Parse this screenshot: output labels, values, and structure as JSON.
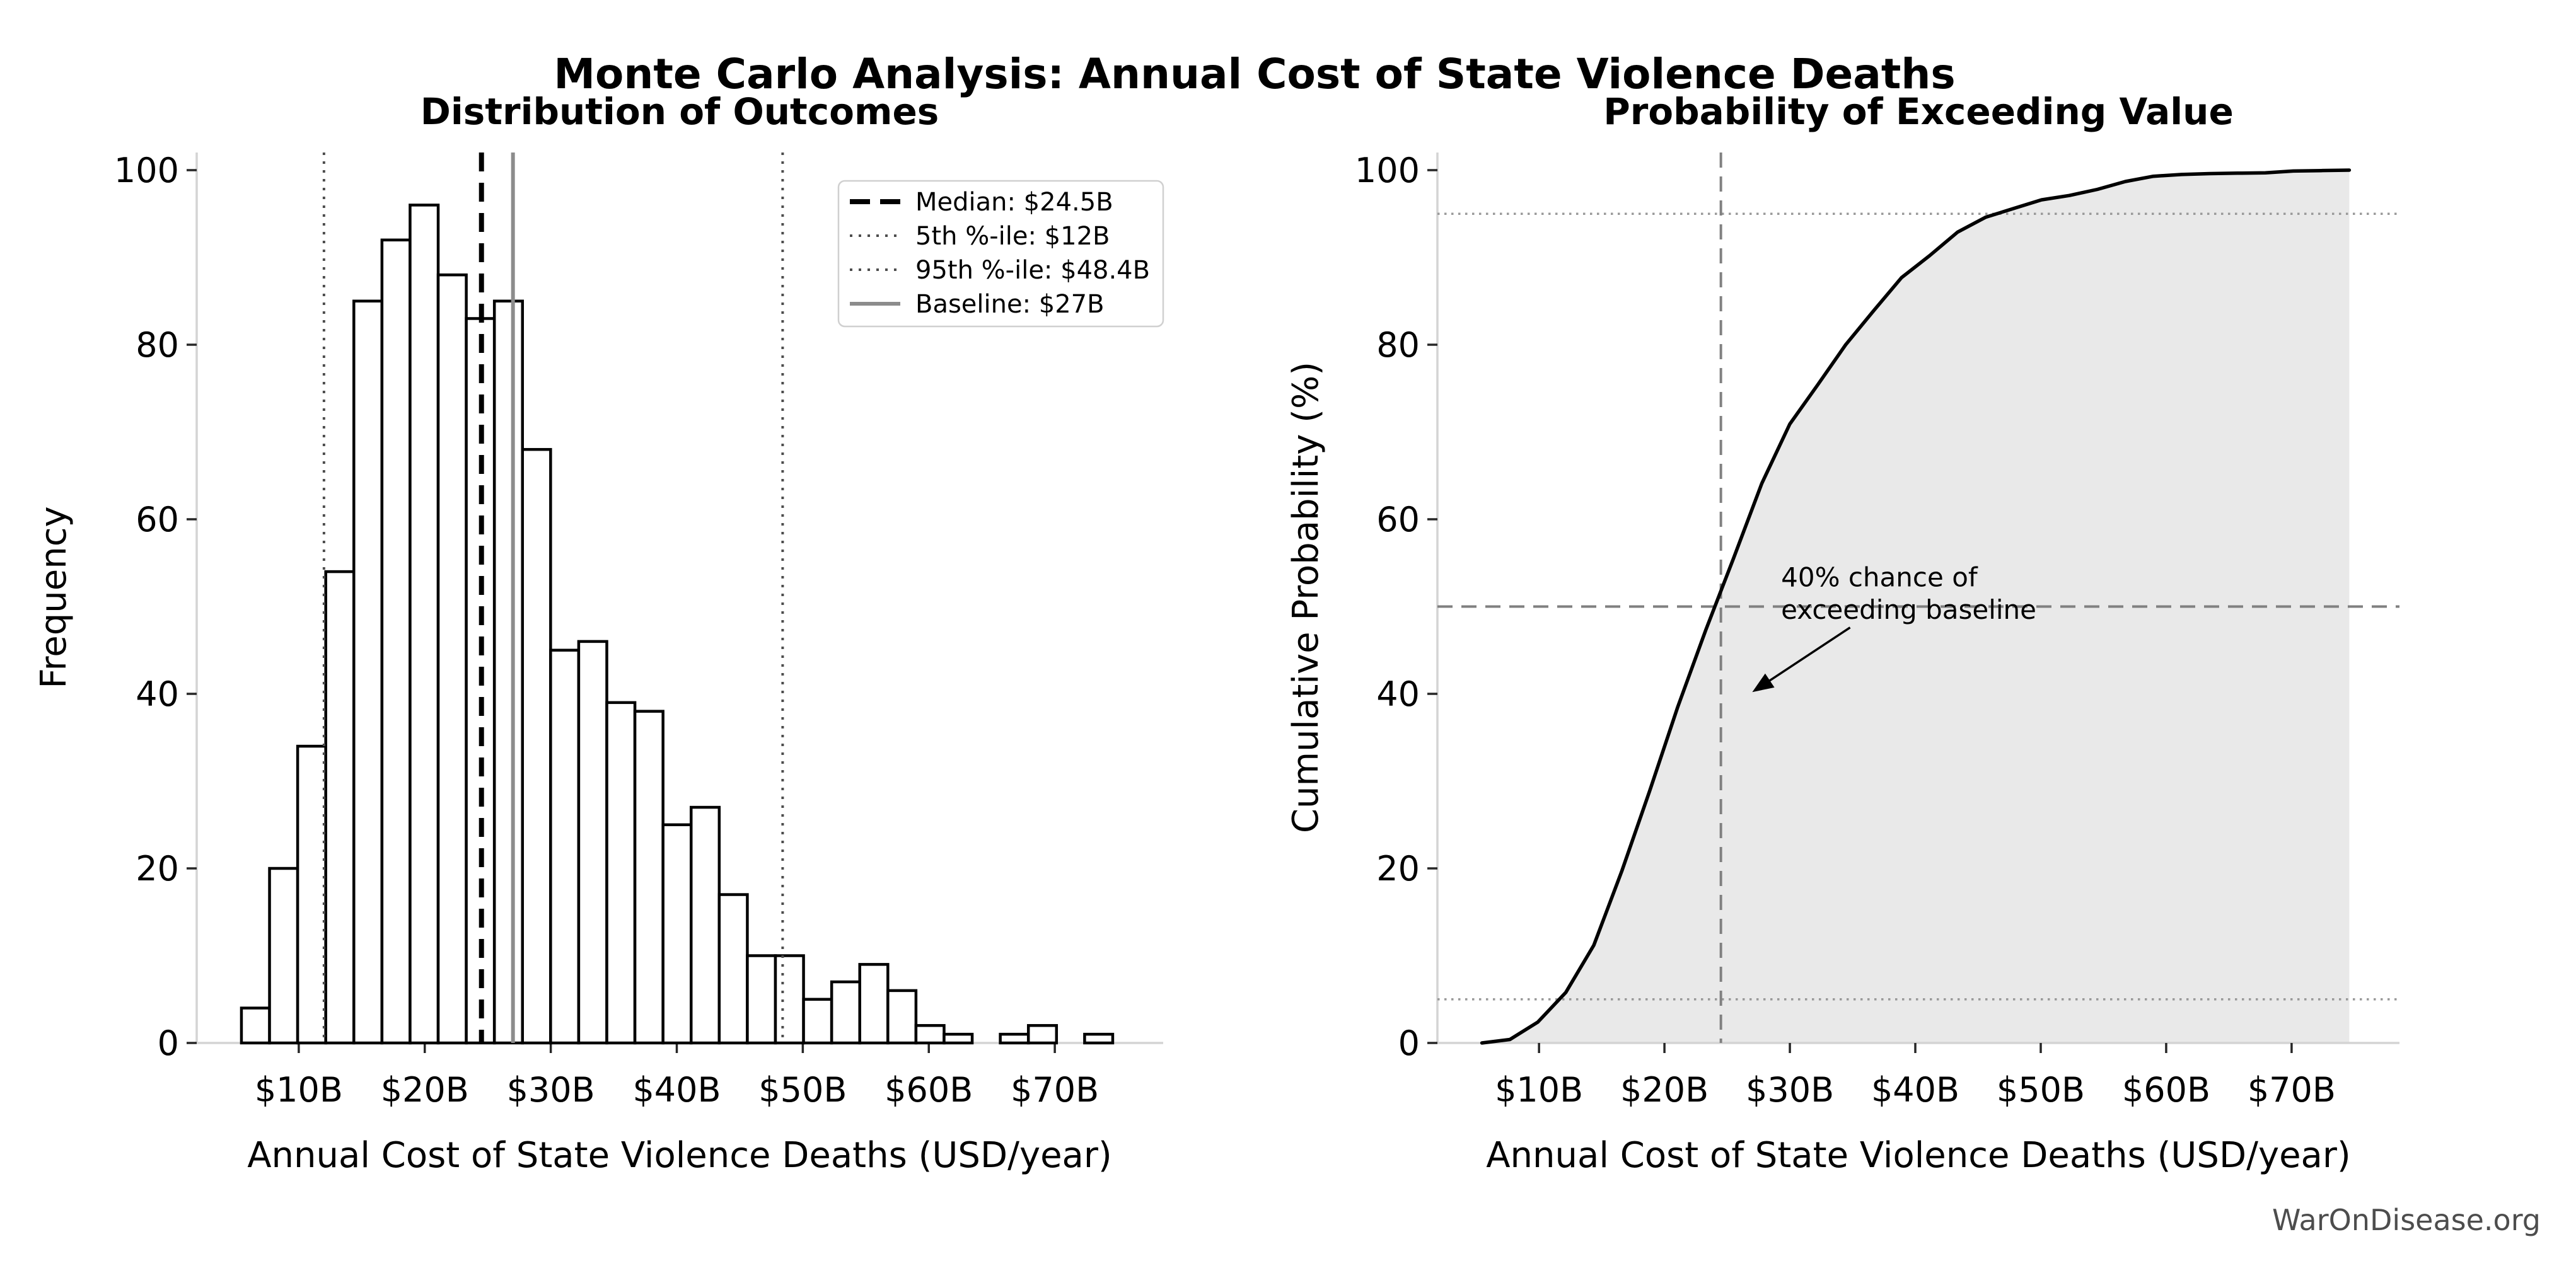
{
  "page": {
    "title": "Monte Carlo Analysis: Annual Cost of State Violence Deaths",
    "footer": "WarOnDisease.org",
    "background": "#ffffff"
  },
  "colors": {
    "text": "#000000",
    "footer_text": "#4d4d4d",
    "spine": "#d4d4d4",
    "tick": "#262626",
    "bar_fill": "#ffffff",
    "bar_edge": "#000000",
    "median_line": "#000000",
    "percentile_line": "#4d4d4d",
    "baseline_line": "#8c8c8c",
    "curve": "#000000",
    "area_fill": "#e9e9e9",
    "guide_dashed": "#808080",
    "guide_dotted": "#999999",
    "legend_border": "#d0d0d0",
    "legend_bg": "#ffffff"
  },
  "chart_data": [
    {
      "type": "bar",
      "title": "Distribution of Outcomes",
      "xlabel": "Annual Cost of State Violence Deaths (USD/year)",
      "ylabel": "Frequency",
      "xlim": [
        1.9,
        78.6
      ],
      "ylim": [
        0,
        102
      ],
      "xticks": {
        "values": [
          10,
          20,
          30,
          40,
          50,
          60,
          70
        ],
        "labels": [
          "$10B",
          "$20B",
          "$30B",
          "$40B",
          "$50B",
          "$60B",
          "$70B"
        ]
      },
      "yticks": {
        "values": [
          0,
          20,
          40,
          60,
          80,
          100
        ],
        "labels": [
          "0",
          "20",
          "40",
          "60",
          "80",
          "100"
        ]
      },
      "n_samples": 1000,
      "bins": {
        "start": 5.45,
        "width": 2.2305,
        "counts": [
          4,
          20,
          34,
          54,
          85,
          92,
          96,
          88,
          83,
          85,
          68,
          45,
          46,
          39,
          38,
          25,
          27,
          17,
          10,
          10,
          5,
          7,
          9,
          6,
          2,
          1,
          0,
          1,
          2,
          0,
          1
        ]
      },
      "vlines": [
        {
          "x": 24.5,
          "style": "dashed",
          "role": "median",
          "width": 8
        },
        {
          "x": 12,
          "style": "dotted",
          "role": "percentile",
          "width": 4
        },
        {
          "x": 48.4,
          "style": "dotted",
          "role": "percentile",
          "width": 4
        },
        {
          "x": 27,
          "style": "solid",
          "role": "baseline",
          "width": 6
        }
      ],
      "legend": [
        {
          "label": "Median: $24.5B",
          "style": "dashed",
          "role": "median",
          "width": 8
        },
        {
          "label": "5th %-ile: $12B",
          "style": "dotted",
          "role": "percentile",
          "width": 4
        },
        {
          "label": "95th %-ile: $48.4B",
          "style": "dotted",
          "role": "percentile",
          "width": 4
        },
        {
          "label": "Baseline: $27B",
          "style": "solid",
          "role": "baseline",
          "width": 6
        }
      ]
    },
    {
      "type": "line",
      "title": "Probability of Exceeding Value",
      "xlabel": "Annual Cost of State Violence Deaths (USD/year)",
      "ylabel": "Cumulative Probability (%)",
      "xlim": [
        1.9,
        78.6
      ],
      "ylim": [
        0,
        102
      ],
      "xticks": {
        "values": [
          10,
          20,
          30,
          40,
          50,
          60,
          70
        ],
        "labels": [
          "$10B",
          "$20B",
          "$30B",
          "$40B",
          "$50B",
          "$60B",
          "$70B"
        ]
      },
      "yticks": {
        "values": [
          0,
          20,
          40,
          60,
          80,
          100
        ],
        "labels": [
          "0",
          "20",
          "40",
          "60",
          "80",
          "100"
        ]
      },
      "cdf_points": [
        [
          5.45,
          0
        ],
        [
          7.68,
          0.4
        ],
        [
          9.91,
          2.4
        ],
        [
          12.14,
          5.8
        ],
        [
          14.37,
          11.2
        ],
        [
          16.6,
          19.7
        ],
        [
          18.83,
          28.9
        ],
        [
          21.06,
          38.5
        ],
        [
          23.29,
          47.3
        ],
        [
          25.53,
          55.6
        ],
        [
          27.76,
          64.1
        ],
        [
          29.99,
          70.9
        ],
        [
          32.22,
          75.4
        ],
        [
          34.45,
          80.0
        ],
        [
          36.68,
          83.9
        ],
        [
          38.91,
          87.7
        ],
        [
          41.14,
          90.2
        ],
        [
          43.37,
          92.9
        ],
        [
          45.6,
          94.6
        ],
        [
          47.83,
          95.6
        ],
        [
          50.06,
          96.6
        ],
        [
          52.29,
          97.1
        ],
        [
          54.52,
          97.8
        ],
        [
          56.75,
          98.7
        ],
        [
          58.98,
          99.3
        ],
        [
          61.22,
          99.5
        ],
        [
          63.45,
          99.6
        ],
        [
          65.68,
          99.65
        ],
        [
          67.91,
          99.7
        ],
        [
          70.14,
          99.9
        ],
        [
          72.37,
          99.95
        ],
        [
          74.6,
          100
        ]
      ],
      "hlines": [
        {
          "y": 95,
          "style": "dotted",
          "role": "guide_dotted",
          "width": 3.5
        },
        {
          "y": 50,
          "style": "dashed",
          "role": "guide_dashed",
          "width": 4
        },
        {
          "y": 5,
          "style": "dotted",
          "role": "guide_dotted",
          "width": 3.5
        }
      ],
      "vlines": [
        {
          "x": 24.5,
          "style": "dashed",
          "role": "guide_dashed",
          "width": 4
        }
      ],
      "annotation": {
        "lines": [
          "40% chance of",
          "exceeding baseline"
        ],
        "text_x": 29.3,
        "text_y": [
          52.3,
          48.6
        ],
        "arrow_from": [
          34.8,
          47.6
        ],
        "arrow_to": [
          27.0,
          40.2
        ]
      }
    }
  ]
}
